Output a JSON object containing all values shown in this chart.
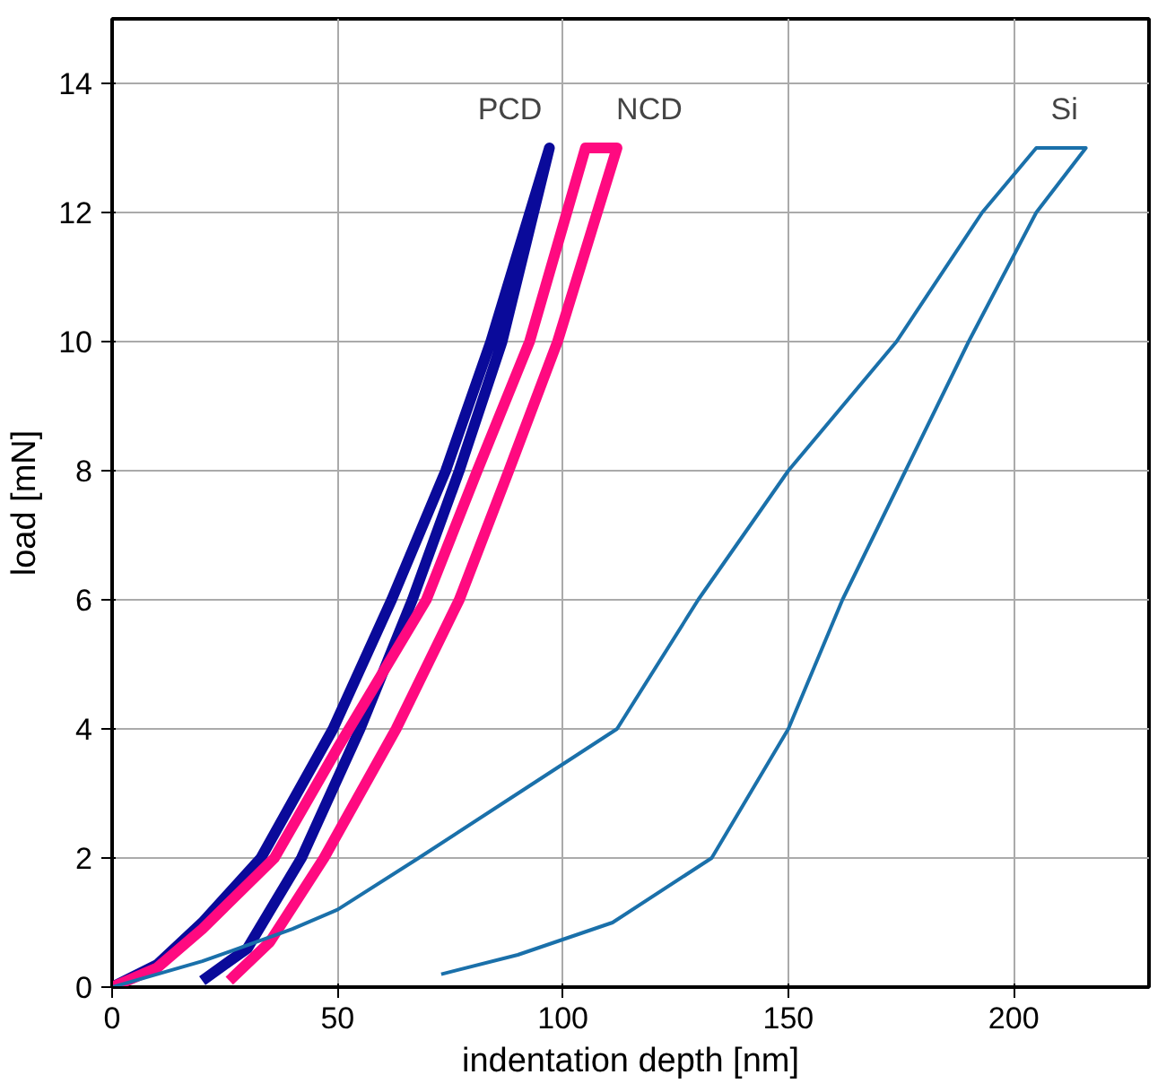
{
  "chart_data": {
    "type": "line",
    "xlabel": "indentation depth [nm]",
    "ylabel": "load [mN]",
    "xlim": [
      0,
      230
    ],
    "ylim": [
      0,
      15
    ],
    "xticks": [
      0,
      50,
      100,
      150,
      200
    ],
    "yticks": [
      0,
      2,
      4,
      6,
      8,
      10,
      12,
      14
    ],
    "grid": true,
    "series": [
      {
        "name": "PCD",
        "color": "#0a0a9a",
        "x": [
          0,
          10,
          20,
          33,
          49,
          62,
          74,
          84,
          97,
          86.5,
          77,
          66.6,
          55,
          42,
          30,
          20
        ],
        "values": [
          0,
          0.35,
          1.0,
          2,
          4,
          6,
          8,
          10,
          13,
          10,
          8,
          6,
          4,
          2,
          0.6,
          0.1
        ]
      },
      {
        "name": "NCD",
        "color": "#ff0a80",
        "x": [
          0,
          10,
          20,
          36,
          50,
          69.7,
          81,
          92.6,
          105,
          112,
          98.8,
          88,
          77,
          63,
          47,
          35,
          26
        ],
        "values": [
          0,
          0.3,
          0.9,
          2,
          3.7,
          6,
          8,
          10,
          13,
          13,
          10,
          8,
          6,
          4,
          2,
          0.7,
          0.1
        ]
      },
      {
        "name": "Si",
        "color": "#1a70aa",
        "x": [
          0,
          20,
          40,
          50,
          68,
          90,
          112,
          130,
          150,
          174,
          193,
          205,
          216,
          205,
          190,
          176,
          162,
          150,
          133,
          111,
          90,
          73
        ],
        "values": [
          0,
          0.4,
          0.9,
          1.2,
          2,
          3,
          4,
          6,
          8,
          10,
          12,
          13,
          13,
          12,
          10,
          8,
          6,
          4,
          2,
          1,
          0.5,
          0.2
        ]
      }
    ]
  }
}
